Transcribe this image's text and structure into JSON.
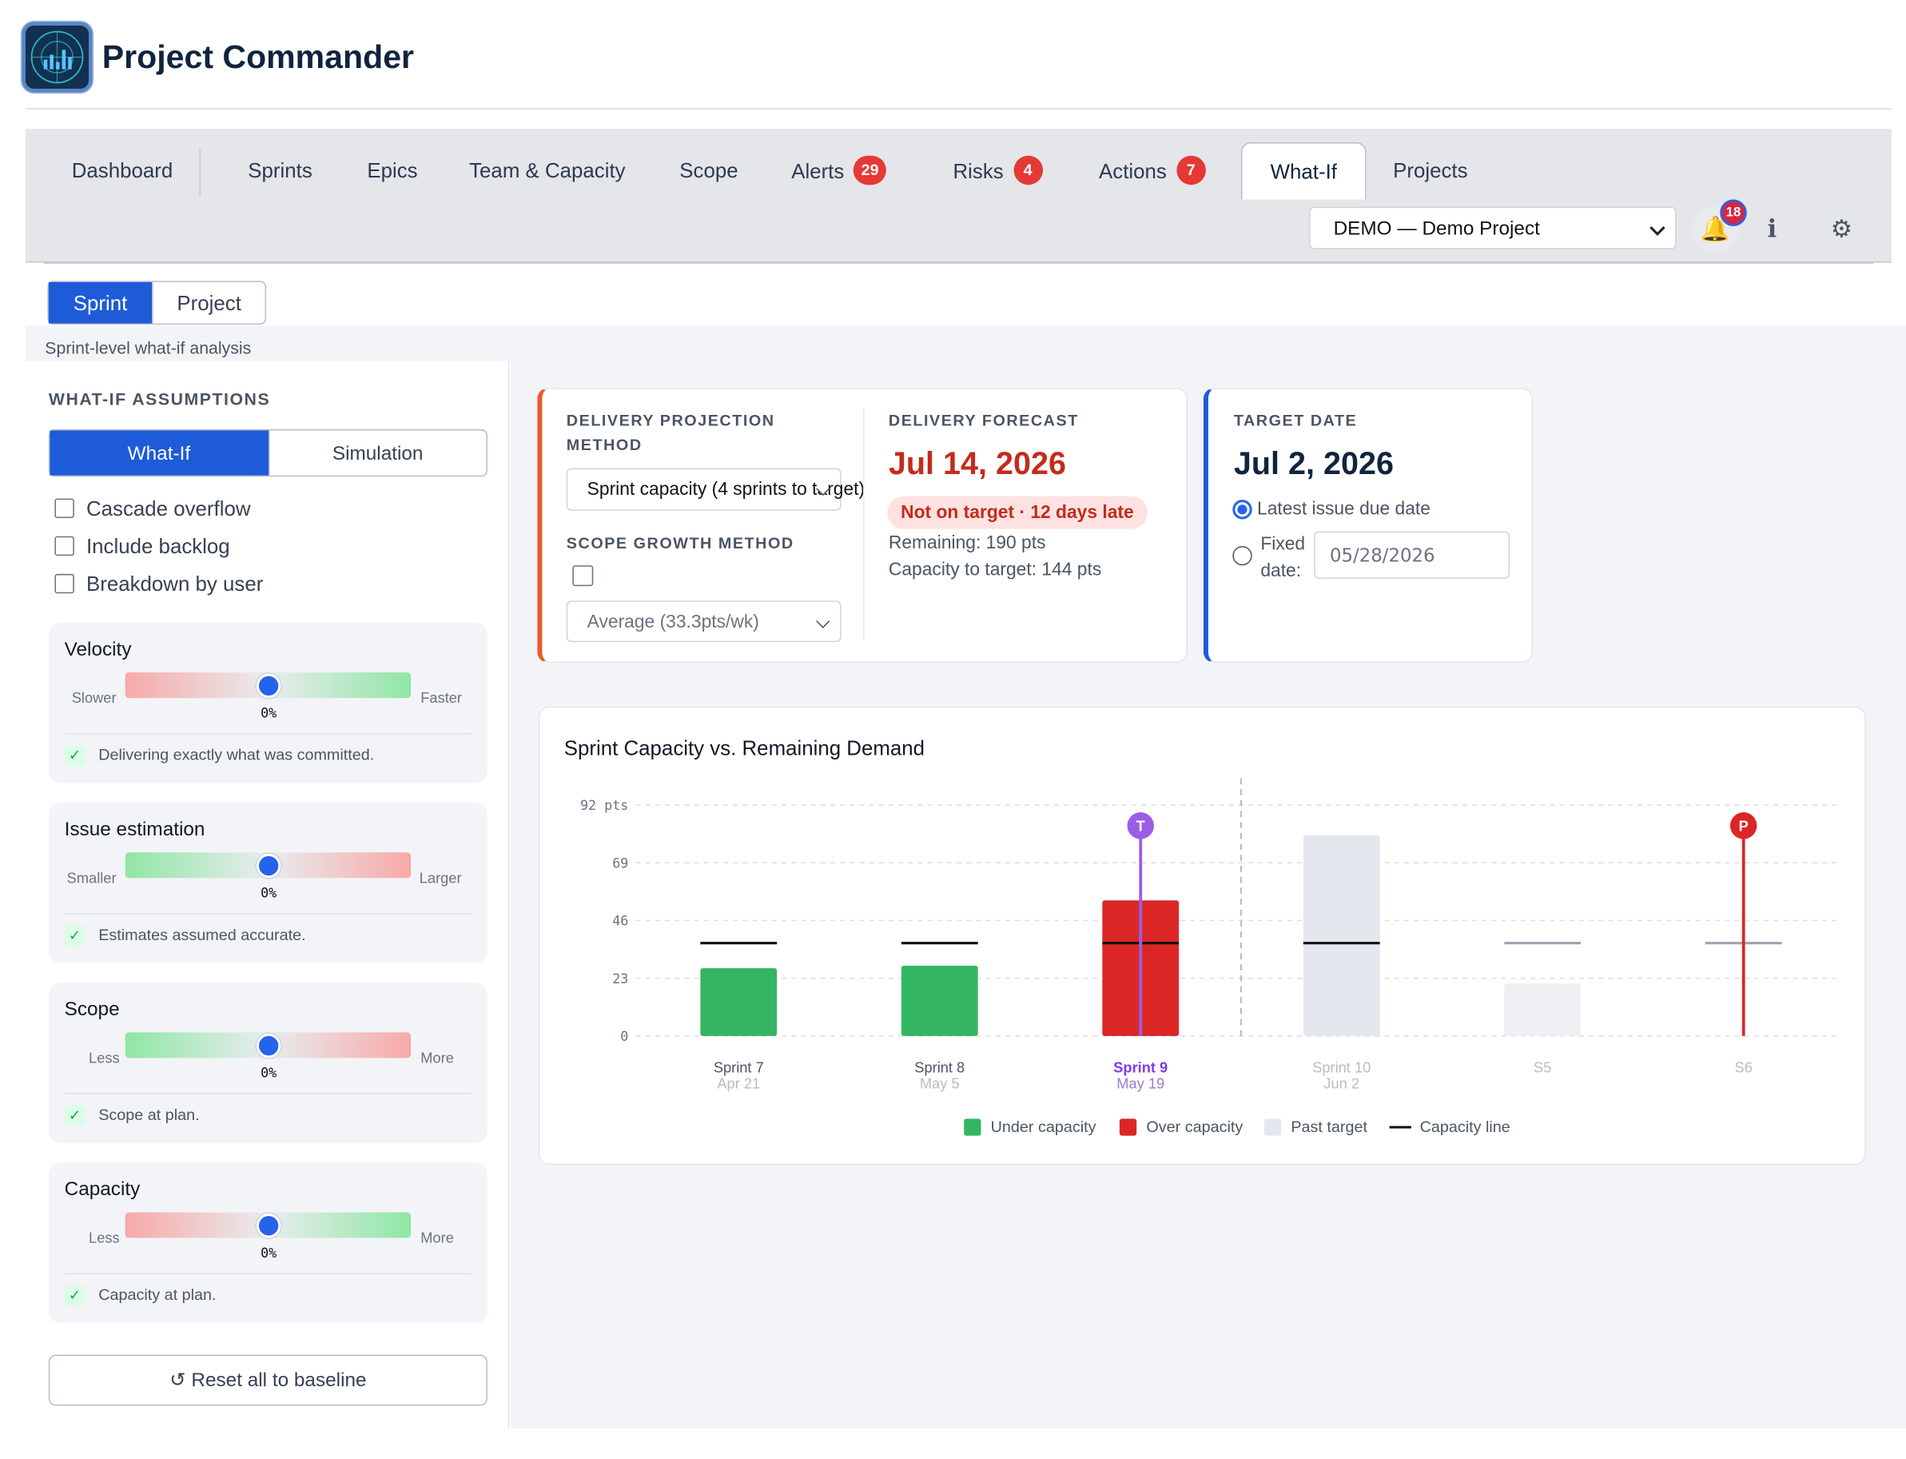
{
  "app": {
    "title": "Project Commander"
  },
  "nav": {
    "tabs": [
      {
        "label": "Dashboard"
      },
      {
        "label": "Sprints"
      },
      {
        "label": "Epics"
      },
      {
        "label": "Team & Capacity"
      },
      {
        "label": "Scope"
      },
      {
        "label": "Alerts",
        "badge": "29"
      },
      {
        "label": "Risks",
        "badge": "4"
      },
      {
        "label": "Actions",
        "badge": "7"
      },
      {
        "label": "What-If",
        "active": true
      },
      {
        "label": "Projects"
      }
    ],
    "project_select": "DEMO — Demo Project",
    "notifications_badge": "18",
    "info_icon": "info-icon",
    "settings_icon": "gear-icon"
  },
  "mode_toggle": {
    "sprint": "Sprint",
    "project": "Project",
    "selected": "Sprint"
  },
  "caption": "Sprint-level what-if analysis",
  "assumptions": {
    "title": "WHAT-IF ASSUMPTIONS",
    "toggle": {
      "whatif": "What-If",
      "simulation": "Simulation",
      "selected": "What-If"
    },
    "checkboxes": [
      {
        "label": "Cascade overflow",
        "checked": false
      },
      {
        "label": "Include backlog",
        "checked": false
      },
      {
        "label": "Breakdown by user",
        "checked": false
      }
    ],
    "sliders": [
      {
        "title": "Velocity",
        "left": "Slower",
        "right": "Faster",
        "value": "0%",
        "note": "Delivering exactly what was committed."
      },
      {
        "title": "Issue estimation",
        "left": "Smaller",
        "right": "Larger",
        "value": "0%",
        "note": "Estimates assumed accurate."
      },
      {
        "title": "Scope",
        "left": "Less",
        "right": "More",
        "value": "0%",
        "note": "Scope at plan."
      },
      {
        "title": "Capacity",
        "left": "Less",
        "right": "More",
        "value": "0%",
        "note": "Capacity at plan."
      }
    ],
    "reset_label": "↺ Reset all to baseline"
  },
  "projection": {
    "method_label": "DELIVERY PROJECTION METHOD",
    "method_value": "Sprint capacity (4 sprints to target)",
    "scope_label": "SCOPE GROWTH METHOD",
    "scope_value": "Average (33.3pts/wk)",
    "forecast_label": "DELIVERY FORECAST",
    "forecast_date": "Jul 14, 2026",
    "status_pill": "Not on target · 12 days late",
    "remaining": "Remaining: 190 pts",
    "capacity_to_target": "Capacity to target: 144 pts"
  },
  "target": {
    "label": "TARGET DATE",
    "date": "Jul 2, 2026",
    "option_latest": "Latest issue due date",
    "option_fixed_1": "Fixed",
    "option_fixed_2": "date:",
    "fixed_placeholder": "05/28/2026"
  },
  "colors": {
    "under": "#34b562",
    "over": "#dc2626",
    "past": "#e5e7ef",
    "accent": "#1d5bd8",
    "forecast": "#c42b1c",
    "target_marker": "#9b5de5"
  },
  "chart_data": {
    "type": "bar",
    "title": "Sprint Capacity vs. Remaining Demand",
    "y_unit": "pts",
    "ylim": [
      0,
      92
    ],
    "yticks": [
      "92 pts",
      "69",
      "46",
      "23",
      "0"
    ],
    "categories": [
      {
        "name": "Sprint 7",
        "date": "Apr 21"
      },
      {
        "name": "Sprint 8",
        "date": "May 5"
      },
      {
        "name": "Sprint 9",
        "date": "May 19"
      },
      {
        "name": "Sprint 10",
        "date": "Jun 2"
      },
      {
        "name": "S5",
        "date": ""
      },
      {
        "name": "S6",
        "date": ""
      }
    ],
    "demand": [
      27,
      28,
      54,
      80,
      21,
      0
    ],
    "capacity": [
      37,
      37,
      37,
      37,
      37,
      37
    ],
    "status": [
      "under",
      "under",
      "over",
      "past",
      "past",
      "past"
    ],
    "markers": [
      {
        "label": "T",
        "category": "Sprint 9"
      },
      {
        "label": "P",
        "category": "S6"
      }
    ],
    "legend": [
      "Under capacity",
      "Over capacity",
      "Past target",
      "Capacity line"
    ],
    "grid": true
  }
}
